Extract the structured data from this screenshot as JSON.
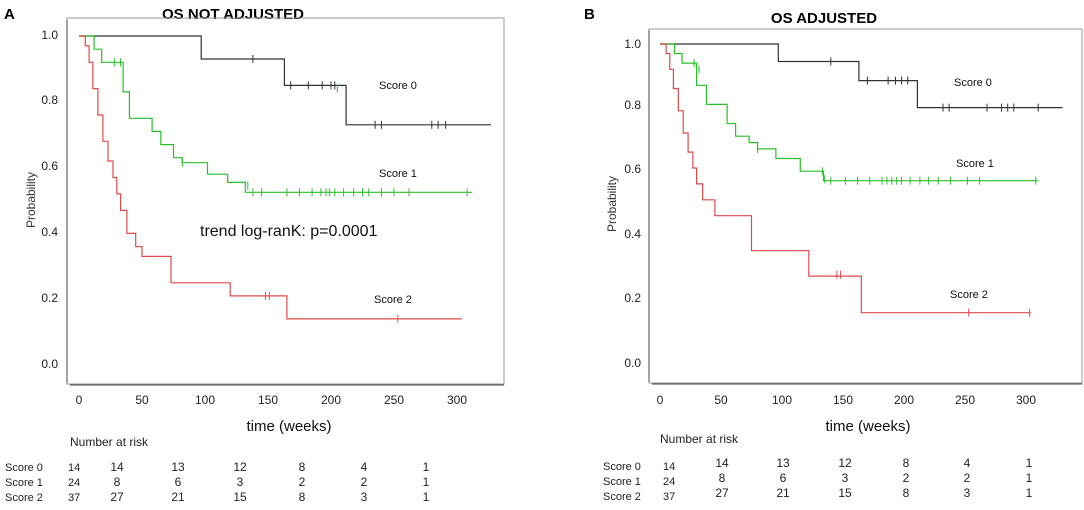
{
  "chart_data": [
    {
      "type": "line",
      "panel": "A",
      "title": "OS NOT ADJUSTED",
      "xlabel": "time (weeks)",
      "ylabel": "Probability",
      "xlim": [
        0,
        330
      ],
      "ylim": [
        0,
        1
      ],
      "xticks": [
        "0",
        "50",
        "100",
        "150",
        "200",
        "250",
        "300"
      ],
      "yticks": [
        "0.0",
        "0.2",
        "0.4",
        "0.6",
        "0.8",
        "1.0"
      ],
      "annotation": "trend log-ranK: p=0.0001",
      "series": [
        {
          "name": "Score 0",
          "color": "#333333",
          "steps": [
            [
              0,
              1.0
            ],
            [
              97,
              0.93
            ],
            [
              163,
              0.85
            ],
            [
              212,
              0.73
            ],
            [
              327,
              0.73
            ]
          ],
          "censor": [
            [
              138,
              0.93
            ],
            [
              168,
              0.85
            ],
            [
              182,
              0.85
            ],
            [
              193,
              0.85
            ],
            [
              200,
              0.85
            ],
            [
              203,
              0.85
            ],
            [
              235,
              0.73
            ],
            [
              240,
              0.73
            ],
            [
              280,
              0.73
            ],
            [
              285,
              0.73
            ],
            [
              291,
              0.73
            ]
          ],
          "censor_color": "#333333"
        },
        {
          "name": "Score 1",
          "color": "#2bbf2b",
          "steps": [
            [
              0,
              1.0
            ],
            [
              12,
              0.96
            ],
            [
              18,
              0.92
            ],
            [
              35,
              0.83
            ],
            [
              40,
              0.75
            ],
            [
              58,
              0.71
            ],
            [
              65,
              0.67
            ],
            [
              75,
              0.63
            ],
            [
              82,
              0.615
            ],
            [
              102,
              0.58
            ],
            [
              118,
              0.555
            ],
            [
              132,
              0.525
            ],
            [
              312,
              0.525
            ]
          ],
          "censor": [
            [
              28,
              0.92
            ],
            [
              33,
              0.92
            ],
            [
              82,
              0.615
            ],
            [
              134,
              0.545
            ],
            [
              138,
              0.525
            ],
            [
              145,
              0.525
            ],
            [
              165,
              0.525
            ],
            [
              175,
              0.525
            ],
            [
              185,
              0.525
            ],
            [
              192,
              0.525
            ],
            [
              196,
              0.525
            ],
            [
              199,
              0.525
            ],
            [
              203,
              0.525
            ],
            [
              210,
              0.525
            ],
            [
              218,
              0.525
            ],
            [
              225,
              0.525
            ],
            [
              230,
              0.525
            ],
            [
              240,
              0.525
            ],
            [
              250,
              0.525
            ],
            [
              262,
              0.525
            ],
            [
              308,
              0.525
            ]
          ],
          "censor_color": "#2bbf2b",
          "censor_extra": [
            [
              205,
              0.84
            ]
          ]
        },
        {
          "name": "Score 2",
          "color": "#e04a4a",
          "steps": [
            [
              0,
              1.0
            ],
            [
              5,
              0.97
            ],
            [
              8,
              0.92
            ],
            [
              11,
              0.84
            ],
            [
              15,
              0.76
            ],
            [
              19,
              0.68
            ],
            [
              23,
              0.62
            ],
            [
              27,
              0.57
            ],
            [
              30,
              0.52
            ],
            [
              33,
              0.47
            ],
            [
              38,
              0.4
            ],
            [
              45,
              0.36
            ],
            [
              50,
              0.33
            ],
            [
              73,
              0.25
            ],
            [
              120,
              0.21
            ],
            [
              165,
              0.14
            ],
            [
              304,
              0.14
            ]
          ],
          "censor": [
            [
              148,
              0.21
            ],
            [
              151,
              0.21
            ],
            [
              253,
              0.14
            ]
          ],
          "censor_color": "#e04a4a"
        }
      ],
      "risk_table": {
        "header": "Number at risk",
        "rows": [
          {
            "label": "Score 0",
            "n0": "14",
            "values": [
              "14",
              "13",
              "12",
              "8",
              "4",
              "1"
            ]
          },
          {
            "label": "Score 1",
            "n0": "24",
            "values": [
              "8",
              "6",
              "3",
              "2",
              "2",
              "1"
            ]
          },
          {
            "label": "Score 2",
            "n0": "37",
            "values": [
              "27",
              "21",
              "15",
              "8",
              "3",
              "1"
            ]
          }
        ]
      }
    },
    {
      "type": "line",
      "panel": "B",
      "title": "OS ADJUSTED",
      "xlabel": "time (weeks)",
      "ylabel": "Probability",
      "xlim": [
        0,
        330
      ],
      "ylim": [
        0,
        1
      ],
      "xticks": [
        "0",
        "50",
        "100",
        "150",
        "200",
        "250",
        "300"
      ],
      "yticks": [
        "0.0",
        "0.2",
        "0.4",
        "0.6",
        "0.8",
        "1.0"
      ],
      "annotation": "",
      "series": [
        {
          "name": "Score 0",
          "color": "#333333",
          "steps": [
            [
              0,
              1.0
            ],
            [
              97,
              0.945
            ],
            [
              163,
              0.885
            ],
            [
              211,
              0.8
            ],
            [
              330,
              0.8
            ]
          ],
          "censor": [
            [
              140,
              0.945
            ],
            [
              170,
              0.885
            ],
            [
              187,
              0.885
            ],
            [
              193,
              0.885
            ],
            [
              198,
              0.885
            ],
            [
              203,
              0.885
            ],
            [
              232,
              0.8
            ],
            [
              237,
              0.8
            ],
            [
              268,
              0.8
            ],
            [
              280,
              0.8
            ],
            [
              285,
              0.8
            ],
            [
              290,
              0.8
            ],
            [
              310,
              0.8
            ]
          ],
          "censor_color": "#333333"
        },
        {
          "name": "Score 1",
          "color": "#2bbf2b",
          "steps": [
            [
              0,
              1.0
            ],
            [
              12,
              0.97
            ],
            [
              18,
              0.94
            ],
            [
              30,
              0.87
            ],
            [
              38,
              0.81
            ],
            [
              55,
              0.75
            ],
            [
              62,
              0.71
            ],
            [
              73,
              0.69
            ],
            [
              80,
              0.67
            ],
            [
              95,
              0.64
            ],
            [
              115,
              0.6
            ],
            [
              130,
              0.6
            ],
            [
              134,
              0.57
            ],
            [
              310,
              0.57
            ]
          ],
          "censor": [
            [
              28,
              0.94
            ],
            [
              32,
              0.92
            ],
            [
              80,
              0.67
            ],
            [
              133,
              0.6
            ],
            [
              135,
              0.575
            ],
            [
              140,
              0.57
            ],
            [
              152,
              0.57
            ],
            [
              162,
              0.57
            ],
            [
              172,
              0.57
            ],
            [
              182,
              0.57
            ],
            [
              186,
              0.57
            ],
            [
              190,
              0.57
            ],
            [
              194,
              0.57
            ],
            [
              198,
              0.57
            ],
            [
              205,
              0.57
            ],
            [
              213,
              0.57
            ],
            [
              220,
              0.57
            ],
            [
              228,
              0.57
            ],
            [
              238,
              0.57
            ],
            [
              252,
              0.57
            ],
            [
              262,
              0.57
            ],
            [
              308,
              0.57
            ]
          ],
          "censor_color": "#2bbf2b"
        },
        {
          "name": "Score 2",
          "color": "#e04a4a",
          "steps": [
            [
              0,
              1.0
            ],
            [
              5,
              0.97
            ],
            [
              8,
              0.92
            ],
            [
              11,
              0.86
            ],
            [
              15,
              0.79
            ],
            [
              19,
              0.72
            ],
            [
              23,
              0.66
            ],
            [
              27,
              0.61
            ],
            [
              30,
              0.56
            ],
            [
              35,
              0.51
            ],
            [
              45,
              0.46
            ],
            [
              75,
              0.35
            ],
            [
              122,
              0.27
            ],
            [
              165,
              0.155
            ],
            [
              304,
              0.155
            ]
          ],
          "censor": [
            [
              145,
              0.275
            ],
            [
              148,
              0.275
            ],
            [
              253,
              0.155
            ],
            [
              303,
              0.155
            ]
          ],
          "censor_color": "#e04a4a"
        }
      ],
      "risk_table": {
        "header": "Number at risk",
        "rows": [
          {
            "label": "Score 0",
            "n0": "14",
            "values": [
              "14",
              "13",
              "12",
              "8",
              "4",
              "1"
            ]
          },
          {
            "label": "Score 1",
            "n0": "24",
            "values": [
              "8",
              "6",
              "3",
              "2",
              "2",
              "1"
            ]
          },
          {
            "label": "Score 2",
            "n0": "37",
            "values": [
              "27",
              "21",
              "15",
              "8",
              "3",
              "1"
            ]
          }
        ]
      }
    }
  ]
}
